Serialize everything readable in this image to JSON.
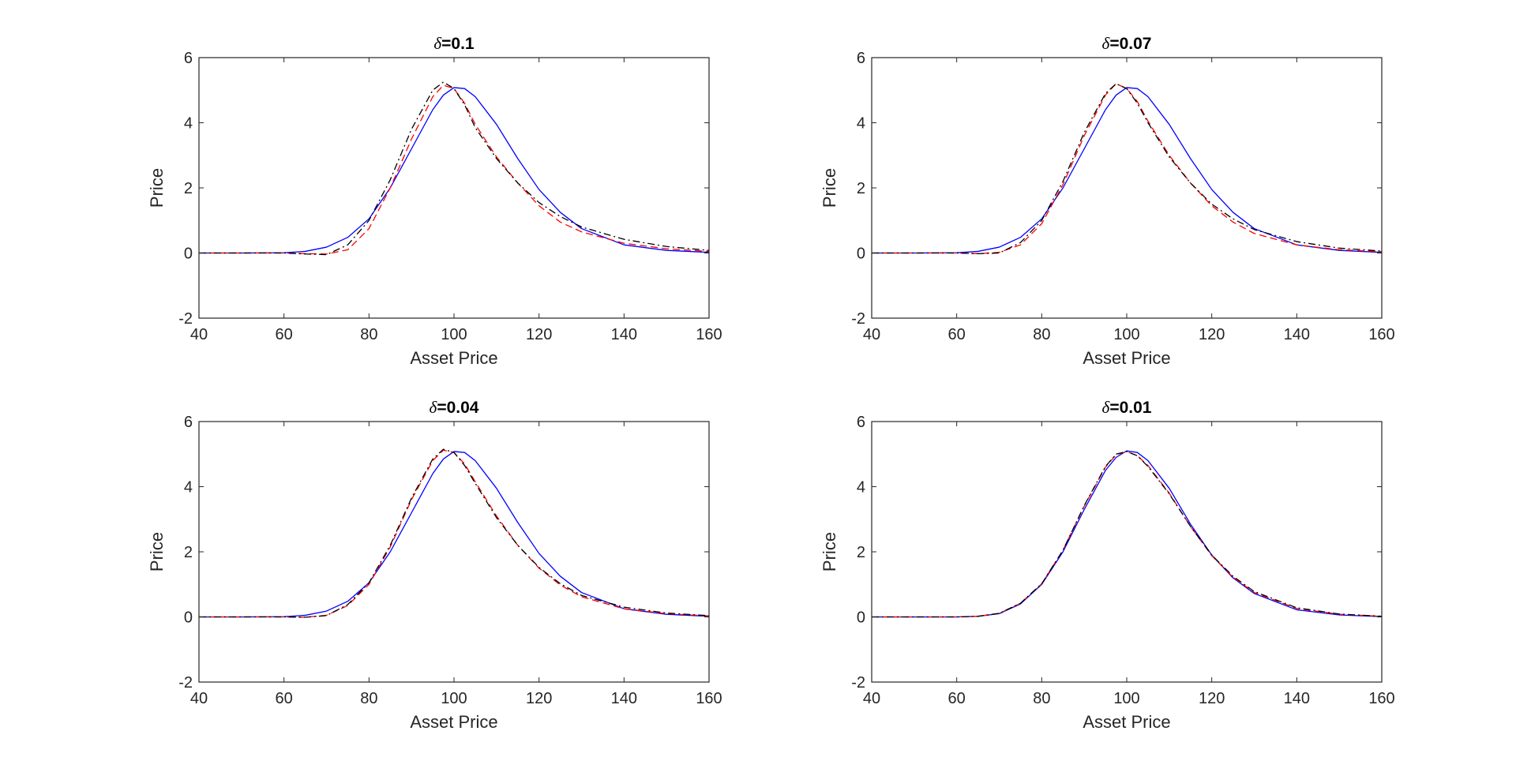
{
  "chart_data": [
    {
      "type": "line",
      "title_symbol": "δ",
      "title_value": "=0.1",
      "xlabel": "Asset Price",
      "ylabel": "Price",
      "xlim": [
        40,
        160
      ],
      "ylim": [
        -2,
        6
      ],
      "xticks": [
        "40",
        "60",
        "80",
        "100",
        "120",
        "140",
        "160"
      ],
      "yticks": [
        "-2",
        "0",
        "2",
        "4",
        "6"
      ],
      "grid": false,
      "x": [
        40,
        50,
        60,
        65,
        70,
        75,
        80,
        85,
        90,
        95,
        97.5,
        100,
        102.5,
        105,
        110,
        115,
        120,
        125,
        130,
        140,
        150,
        160
      ],
      "series": [
        {
          "name": "blue-solid",
          "color": "#0000ff",
          "dash": "solid",
          "values": [
            0,
            0,
            0.01,
            0.05,
            0.18,
            0.48,
            1.05,
            2.0,
            3.2,
            4.4,
            4.85,
            5.08,
            5.05,
            4.8,
            3.95,
            2.9,
            1.95,
            1.25,
            0.75,
            0.25,
            0.08,
            0.02
          ]
        },
        {
          "name": "red-dashed",
          "color": "#ff0000",
          "dash": "dash",
          "values": [
            0,
            0,
            0,
            -0.02,
            -0.03,
            0.1,
            0.75,
            2.0,
            3.5,
            4.8,
            5.15,
            5.05,
            4.6,
            3.95,
            2.95,
            2.15,
            1.45,
            0.95,
            0.65,
            0.3,
            0.13,
            0.05
          ]
        },
        {
          "name": "black-dashdot",
          "color": "#000000",
          "dash": "dashdot",
          "values": [
            0,
            0,
            0,
            -0.03,
            -0.05,
            0.25,
            1.0,
            2.25,
            3.8,
            5.0,
            5.25,
            5.05,
            4.55,
            3.85,
            2.9,
            2.15,
            1.55,
            1.12,
            0.8,
            0.42,
            0.2,
            0.08
          ]
        }
      ]
    },
    {
      "type": "line",
      "title_symbol": "δ",
      "title_value": "=0.07",
      "xlabel": "Asset Price",
      "ylabel": "Price",
      "xlim": [
        40,
        160
      ],
      "ylim": [
        -2,
        6
      ],
      "xticks": [
        "40",
        "60",
        "80",
        "100",
        "120",
        "140",
        "160"
      ],
      "yticks": [
        "-2",
        "0",
        "2",
        "4",
        "6"
      ],
      "grid": false,
      "x": [
        40,
        50,
        60,
        65,
        70,
        75,
        80,
        85,
        90,
        95,
        97.5,
        100,
        102.5,
        105,
        110,
        115,
        120,
        125,
        130,
        140,
        150,
        160
      ],
      "series": [
        {
          "name": "blue-solid",
          "color": "#0000ff",
          "dash": "solid",
          "values": [
            0,
            0,
            0.01,
            0.05,
            0.18,
            0.48,
            1.05,
            2.0,
            3.2,
            4.4,
            4.85,
            5.08,
            5.05,
            4.8,
            3.95,
            2.9,
            1.95,
            1.25,
            0.75,
            0.25,
            0.08,
            0.02
          ]
        },
        {
          "name": "red-dashed",
          "color": "#ff0000",
          "dash": "dash",
          "values": [
            0,
            0,
            0,
            -0.02,
            0.02,
            0.25,
            0.9,
            2.1,
            3.6,
            4.85,
            5.2,
            5.05,
            4.65,
            4.05,
            3.0,
            2.15,
            1.45,
            0.95,
            0.6,
            0.25,
            0.1,
            0.04
          ]
        },
        {
          "name": "black-dashdot",
          "color": "#000000",
          "dash": "dashdot",
          "values": [
            0,
            0,
            0,
            -0.02,
            0.0,
            0.32,
            1.0,
            2.2,
            3.7,
            4.9,
            5.2,
            5.05,
            4.6,
            4.0,
            2.95,
            2.15,
            1.5,
            1.05,
            0.72,
            0.35,
            0.15,
            0.06
          ]
        }
      ]
    },
    {
      "type": "line",
      "title_symbol": "δ",
      "title_value": "=0.04",
      "xlabel": "Asset Price",
      "ylabel": "Price",
      "xlim": [
        40,
        160
      ],
      "ylim": [
        -2,
        6
      ],
      "xticks": [
        "40",
        "60",
        "80",
        "100",
        "120",
        "140",
        "160"
      ],
      "yticks": [
        "-2",
        "0",
        "2",
        "4",
        "6"
      ],
      "grid": false,
      "x": [
        40,
        50,
        60,
        65,
        70,
        75,
        80,
        85,
        90,
        95,
        97.5,
        100,
        102.5,
        105,
        110,
        115,
        120,
        125,
        130,
        140,
        150,
        160
      ],
      "series": [
        {
          "name": "blue-solid",
          "color": "#0000ff",
          "dash": "solid",
          "values": [
            0,
            0,
            0.01,
            0.05,
            0.18,
            0.48,
            1.05,
            2.0,
            3.2,
            4.4,
            4.85,
            5.08,
            5.05,
            4.8,
            3.95,
            2.9,
            1.95,
            1.25,
            0.75,
            0.25,
            0.08,
            0.02
          ]
        },
        {
          "name": "red-dashed",
          "color": "#ff0000",
          "dash": "dash",
          "values": [
            0,
            0,
            0,
            -0.01,
            0.05,
            0.35,
            1.0,
            2.15,
            3.6,
            4.8,
            5.12,
            5.05,
            4.7,
            4.15,
            3.1,
            2.2,
            1.5,
            0.98,
            0.62,
            0.25,
            0.1,
            0.03
          ]
        },
        {
          "name": "black-dashdot",
          "color": "#000000",
          "dash": "dashdot",
          "values": [
            0,
            0,
            0,
            -0.01,
            0.04,
            0.38,
            1.05,
            2.2,
            3.65,
            4.85,
            5.15,
            5.05,
            4.65,
            4.1,
            3.05,
            2.2,
            1.52,
            1.02,
            0.66,
            0.3,
            0.12,
            0.04
          ]
        }
      ]
    },
    {
      "type": "line",
      "title_symbol": "δ",
      "title_value": "=0.01",
      "xlabel": "Asset Price",
      "ylabel": "Price",
      "xlim": [
        40,
        160
      ],
      "ylim": [
        -2,
        6
      ],
      "xticks": [
        "40",
        "60",
        "80",
        "100",
        "120",
        "140",
        "160"
      ],
      "yticks": [
        "-2",
        "0",
        "2",
        "4",
        "6"
      ],
      "grid": false,
      "x": [
        40,
        50,
        60,
        65,
        70,
        75,
        80,
        85,
        90,
        95,
        97.5,
        100,
        102.5,
        105,
        110,
        115,
        120,
        125,
        130,
        140,
        150,
        160
      ],
      "series": [
        {
          "name": "blue-solid",
          "color": "#0000ff",
          "dash": "solid",
          "values": [
            0,
            0,
            0.0,
            0.02,
            0.1,
            0.4,
            1.0,
            2.0,
            3.3,
            4.5,
            4.9,
            5.1,
            5.05,
            4.8,
            3.95,
            2.85,
            1.9,
            1.2,
            0.72,
            0.22,
            0.06,
            0.01
          ]
        },
        {
          "name": "red-dashed",
          "color": "#ff0000",
          "dash": "dash",
          "values": [
            0,
            0,
            0.0,
            0.02,
            0.11,
            0.42,
            1.02,
            2.05,
            3.4,
            4.6,
            4.98,
            5.08,
            4.95,
            4.65,
            3.8,
            2.78,
            1.88,
            1.22,
            0.75,
            0.26,
            0.08,
            0.02
          ]
        },
        {
          "name": "black-dashdot",
          "color": "#000000",
          "dash": "dashdot",
          "values": [
            0,
            0,
            0.0,
            0.02,
            0.11,
            0.42,
            1.02,
            2.05,
            3.42,
            4.62,
            5.0,
            5.08,
            4.95,
            4.62,
            3.78,
            2.78,
            1.9,
            1.25,
            0.78,
            0.28,
            0.09,
            0.02
          ]
        }
      ]
    }
  ]
}
